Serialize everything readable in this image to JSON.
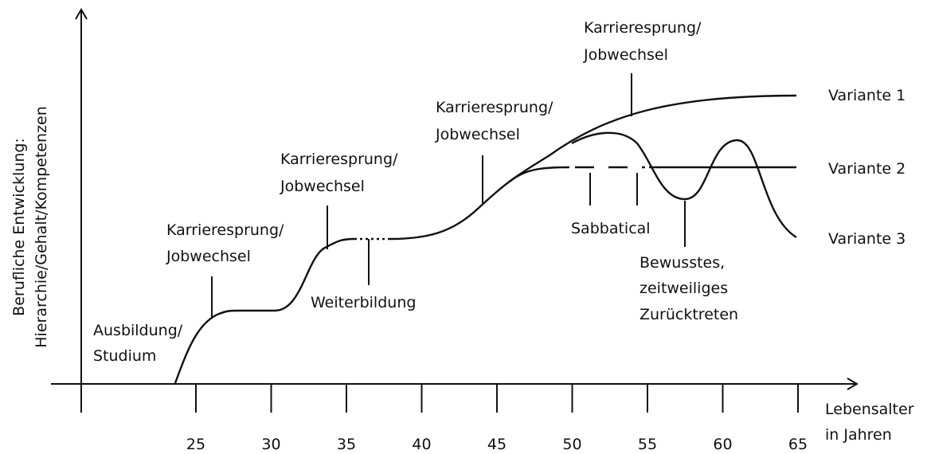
{
  "y_axis_label": [
    "Berufliche Entwicklung:",
    "Hierarchie/Gehalt/Kompetenzen"
  ],
  "x_axis_label": [
    "Lebensalter",
    "in Jahren"
  ],
  "x_ticks": [
    25,
    30,
    35,
    40,
    45,
    50,
    55,
    60,
    65
  ],
  "annotations": [
    {
      "lines": [
        "Ausbildung/",
        "Studium"
      ]
    },
    {
      "lines": [
        "Karrieresprung/",
        "Jobwechsel"
      ]
    },
    {
      "lines": [
        "Karrieresprung/",
        "Jobwechsel"
      ]
    },
    {
      "lines": [
        "Weiterbildung"
      ]
    },
    {
      "lines": [
        "Karrieresprung/",
        "Jobwechsel"
      ]
    },
    {
      "lines": [
        "Karrieresprung/",
        "Jobwechsel"
      ]
    },
    {
      "lines": [
        "Sabbatical"
      ]
    },
    {
      "lines": [
        "Bewusstes,",
        "zeitweiliges",
        "Zurücktreten"
      ]
    }
  ],
  "variants": [
    "Variante 1",
    "Variante 2",
    "Variante 3"
  ]
}
